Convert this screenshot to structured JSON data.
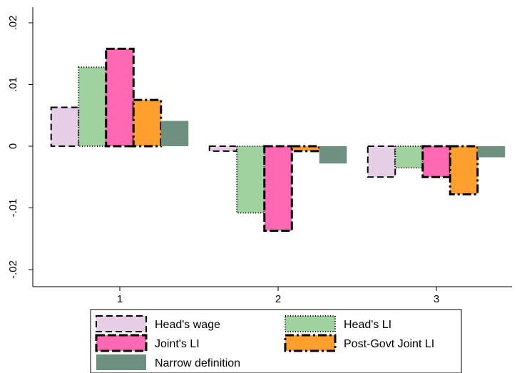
{
  "chart_data": {
    "type": "bar",
    "categories": [
      "1",
      "2",
      "3"
    ],
    "series": [
      {
        "name": "Head's wage",
        "values": [
          0.0063,
          -0.0008,
          -0.005
        ],
        "color": "#e6cfe6",
        "edge": "dash"
      },
      {
        "name": "Head's LI",
        "values": [
          0.0128,
          -0.0108,
          -0.0035
        ],
        "color": "#9fd29f",
        "edge": "dot"
      },
      {
        "name": "Joint's LI",
        "values": [
          0.0158,
          -0.0137,
          -0.005
        ],
        "color": "#ff69b4",
        "edge": "longdash"
      },
      {
        "name": "Post-Govt Joint LI",
        "values": [
          0.0075,
          -0.0008,
          -0.0078
        ],
        "color": "#ffa02e",
        "edge": "dashdot"
      },
      {
        "name": "Narrow definition",
        "values": [
          0.0041,
          -0.0028,
          -0.0018
        ],
        "color": "#6e9080",
        "edge": "none"
      }
    ],
    "ylim": [
      -0.02,
      0.02
    ],
    "yticks": [
      {
        "value": 0.02,
        "label": ".02"
      },
      {
        "value": 0.01,
        "label": ".01"
      },
      {
        "value": 0,
        "label": "0"
      },
      {
        "value": -0.01,
        "label": "-.01"
      },
      {
        "value": -0.02,
        "label": "-.02"
      }
    ],
    "title": "",
    "xlabel": "",
    "ylabel": "",
    "grid": false,
    "legend_position": "bottom"
  }
}
